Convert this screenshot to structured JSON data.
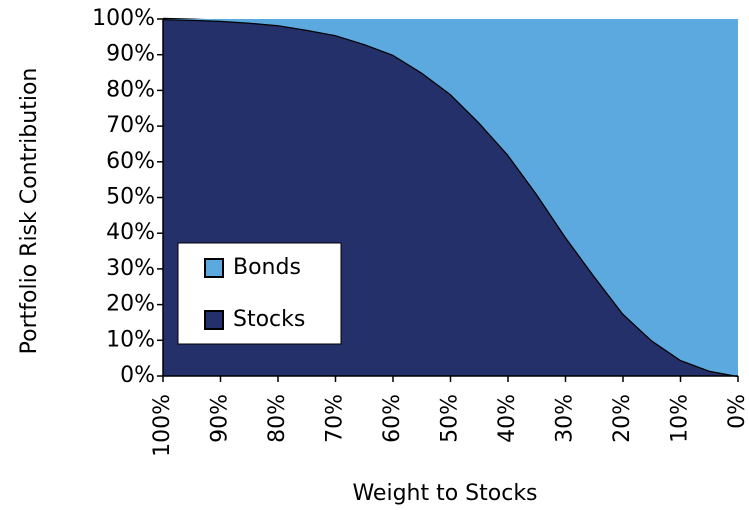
{
  "chart_data": {
    "type": "stacked_area",
    "x_label": "Weight to Stocks",
    "y_label": "Portfolio Risk Contribution",
    "x": [
      100,
      95,
      90,
      85,
      80,
      75,
      70,
      65,
      60,
      55,
      50,
      45,
      40,
      35,
      30,
      25,
      20,
      15,
      10,
      5,
      0
    ],
    "series": [
      {
        "name": "Stocks",
        "color": "#23306a",
        "values": [
          100,
          99.8,
          99.5,
          99,
          98.3,
          97,
          95.5,
          93,
          90,
          85,
          79,
          71,
          62,
          51,
          39,
          28,
          17.5,
          10,
          4.5,
          1.5,
          0
        ]
      },
      {
        "name": "Bonds",
        "color": "#5ba9df",
        "values": [
          0,
          0.2,
          0.5,
          1,
          1.7,
          3,
          4.5,
          7,
          10,
          15,
          21,
          29,
          38,
          49,
          61,
          72,
          82.5,
          90,
          95.5,
          98.5,
          100
        ]
      }
    ],
    "xlim": [
      100,
      0
    ],
    "xticks": [
      {
        "value": 100,
        "label": "100%"
      },
      {
        "value": 90,
        "label": "90%"
      },
      {
        "value": 80,
        "label": "80%"
      },
      {
        "value": 70,
        "label": "70%"
      },
      {
        "value": 60,
        "label": "60%"
      },
      {
        "value": 50,
        "label": "50%"
      },
      {
        "value": 40,
        "label": "40%"
      },
      {
        "value": 30,
        "label": "30%"
      },
      {
        "value": 20,
        "label": "20%"
      },
      {
        "value": 10,
        "label": "10%"
      },
      {
        "value": 0,
        "label": "0%"
      }
    ],
    "ylim": [
      0,
      100
    ],
    "yticks": [
      {
        "value": 0,
        "label": "0%"
      },
      {
        "value": 10,
        "label": "10%"
      },
      {
        "value": 20,
        "label": "20%"
      },
      {
        "value": 30,
        "label": "30%"
      },
      {
        "value": 40,
        "label": "40%"
      },
      {
        "value": 50,
        "label": "50%"
      },
      {
        "value": 60,
        "label": "60%"
      },
      {
        "value": 70,
        "label": "70%"
      },
      {
        "value": 80,
        "label": "80%"
      },
      {
        "value": 90,
        "label": "90%"
      },
      {
        "value": 100,
        "label": "100%"
      }
    ],
    "legend": "lower left"
  }
}
